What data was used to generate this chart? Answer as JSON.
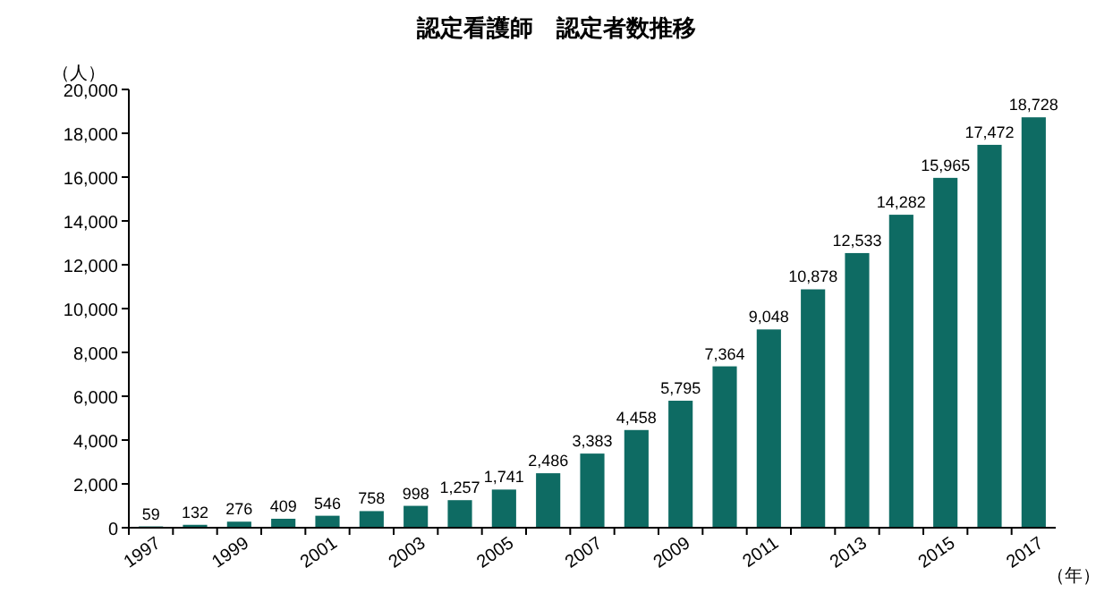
{
  "chart_data": {
    "type": "bar",
    "title": "認定看護師　認定者数推移",
    "ylabel": "（人）",
    "xlabel": "（年）",
    "categories": [
      "1997",
      null,
      "1999",
      null,
      "2001",
      null,
      "2003",
      null,
      "2005",
      null,
      "2007",
      null,
      "2009",
      null,
      "2011",
      null,
      "2013",
      null,
      "2015",
      null,
      "2017"
    ],
    "values": [
      59,
      132,
      276,
      409,
      546,
      758,
      998,
      1257,
      1741,
      2486,
      3383,
      4458,
      5795,
      7364,
      9048,
      10878,
      12533,
      14282,
      15965,
      17472,
      18728
    ],
    "value_labels": [
      "59",
      "132",
      "276",
      "409",
      "546",
      "758",
      "998",
      "1,257",
      "1,741",
      "2,486",
      "3,383",
      "4,458",
      "5,795",
      "7,364",
      "9,048",
      "10,878",
      "12,533",
      "14,282",
      "15,965",
      "17,472",
      "18,728"
    ],
    "color": "#0e6b63",
    "ylim": [
      0,
      20000
    ],
    "yticks": [
      0,
      {
        "value": 2000,
        "label": "2,000"
      },
      {
        "value": 4000,
        "label": "4,000"
      },
      {
        "value": 6000,
        "label": "6,000"
      },
      {
        "value": 8000,
        "label": "8,000"
      },
      {
        "value": 10000,
        "label": "10,000"
      },
      {
        "value": 12000,
        "label": "12,000"
      },
      {
        "value": 14000,
        "label": "14,000"
      },
      {
        "value": 16000,
        "label": "16,000"
      },
      {
        "value": 18000,
        "label": "18,000"
      },
      {
        "value": 20000,
        "label": "20,000"
      }
    ]
  }
}
